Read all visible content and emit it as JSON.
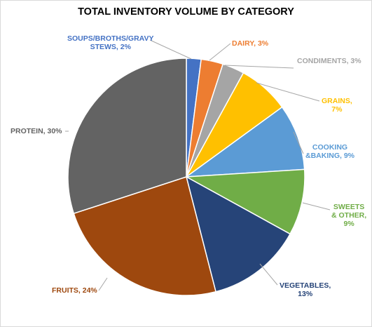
{
  "chart_data": {
    "type": "pie",
    "title": "TOTAL INVENTORY VOLUME BY CATEGORY",
    "start_angle_deg": 0,
    "direction": "clockwise",
    "slices": [
      {
        "label": "SOUPS/BROTHS/GRAVY STEWS",
        "value": 2,
        "color": "#4472c4",
        "label_lines": [
          "SOUPS/BROTHS/GRAVY",
          "STEWS, 2%"
        ]
      },
      {
        "label": "DAIRY",
        "value": 3,
        "color": "#ed7d31",
        "label_lines": [
          "DAIRY, 3%"
        ]
      },
      {
        "label": "CONDIMENTS",
        "value": 3,
        "color": "#a5a5a5",
        "label_lines": [
          "CONDIMENTS, 3%"
        ]
      },
      {
        "label": "GRAINS",
        "value": 7,
        "color": "#ffc000",
        "label_lines": [
          "GRAINS,",
          "7%"
        ]
      },
      {
        "label": "COOKING &BAKING",
        "value": 9,
        "color": "#5b9bd5",
        "label_lines": [
          "COOKING",
          "&BAKING, 9%"
        ]
      },
      {
        "label": "SWEETS & OTHER",
        "value": 9,
        "color": "#70ad47",
        "label_lines": [
          "SWEETS",
          "& OTHER,",
          "9%"
        ]
      },
      {
        "label": "VEGETABLES",
        "value": 13,
        "color": "#264478",
        "label_lines": [
          "VEGETABLES,",
          "13%"
        ]
      },
      {
        "label": "FRUITS",
        "value": 24,
        "color": "#9e480e",
        "label_lines": [
          "FRUITS, 24%"
        ]
      },
      {
        "label": "PROTEIN",
        "value": 30,
        "color": "#636363",
        "label_lines": [
          "PROTEIN, 30%"
        ]
      }
    ],
    "legend": "none"
  }
}
